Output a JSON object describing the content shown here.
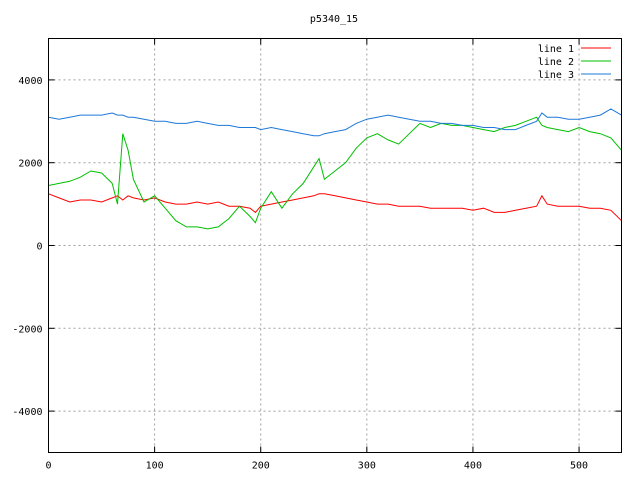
{
  "chart_data": {
    "type": "line",
    "title": "p5340_15",
    "xlabel": "",
    "ylabel": "",
    "xlim": [
      0,
      540
    ],
    "ylim": [
      -5000,
      5000
    ],
    "xticks": [
      0,
      100,
      200,
      300,
      400,
      500
    ],
    "yticks": [
      -4000,
      -2000,
      0,
      2000,
      4000
    ],
    "grid": true,
    "legend_position": "top-right",
    "x": [
      0,
      10,
      20,
      30,
      40,
      50,
      60,
      65,
      70,
      75,
      80,
      90,
      100,
      110,
      120,
      130,
      140,
      150,
      160,
      170,
      180,
      190,
      195,
      200,
      210,
      220,
      230,
      240,
      250,
      255,
      260,
      270,
      280,
      290,
      300,
      310,
      320,
      330,
      340,
      350,
      360,
      370,
      380,
      390,
      400,
      410,
      420,
      430,
      440,
      450,
      460,
      465,
      470,
      480,
      490,
      500,
      510,
      520,
      530,
      540
    ],
    "series": [
      {
        "name": "line 1",
        "color": "#ff0000",
        "values": [
          1250,
          1150,
          1050,
          1100,
          1100,
          1050,
          1150,
          1200,
          1100,
          1200,
          1150,
          1100,
          1150,
          1050,
          1000,
          1000,
          1050,
          1000,
          1050,
          950,
          950,
          900,
          800,
          950,
          1000,
          1050,
          1100,
          1150,
          1200,
          1250,
          1250,
          1200,
          1150,
          1100,
          1050,
          1000,
          1000,
          950,
          950,
          950,
          900,
          900,
          900,
          900,
          850,
          900,
          800,
          800,
          850,
          900,
          950,
          1200,
          1000,
          950,
          950,
          950,
          900,
          900,
          850,
          600
        ]
      },
      {
        "name": "line 2",
        "color": "#00c000",
        "values": [
          1450,
          1500,
          1550,
          1650,
          1800,
          1750,
          1500,
          1000,
          2700,
          2300,
          1600,
          1050,
          1200,
          900,
          600,
          450,
          450,
          400,
          450,
          650,
          950,
          700,
          550,
          900,
          1300,
          900,
          1250,
          1500,
          1900,
          2100,
          1600,
          1800,
          2000,
          2350,
          2600,
          2700,
          2550,
          2450,
          2700,
          2950,
          2850,
          2950,
          2900,
          2900,
          2850,
          2800,
          2750,
          2850,
          2900,
          3000,
          3100,
          2900,
          2850,
          2800,
          2750,
          2850,
          2750,
          2700,
          2600,
          2300
        ]
      },
      {
        "name": "line 3",
        "color": "#1e78d8",
        "values": [
          3100,
          3050,
          3100,
          3150,
          3150,
          3150,
          3200,
          3150,
          3150,
          3100,
          3100,
          3050,
          3000,
          3000,
          2950,
          2950,
          3000,
          2950,
          2900,
          2900,
          2850,
          2850,
          2850,
          2800,
          2850,
          2800,
          2750,
          2700,
          2650,
          2650,
          2700,
          2750,
          2800,
          2950,
          3050,
          3100,
          3150,
          3100,
          3050,
          3000,
          3000,
          2950,
          2950,
          2900,
          2900,
          2850,
          2850,
          2800,
          2800,
          2900,
          3000,
          3200,
          3100,
          3100,
          3050,
          3050,
          3100,
          3150,
          3300,
          3150
        ]
      }
    ]
  }
}
